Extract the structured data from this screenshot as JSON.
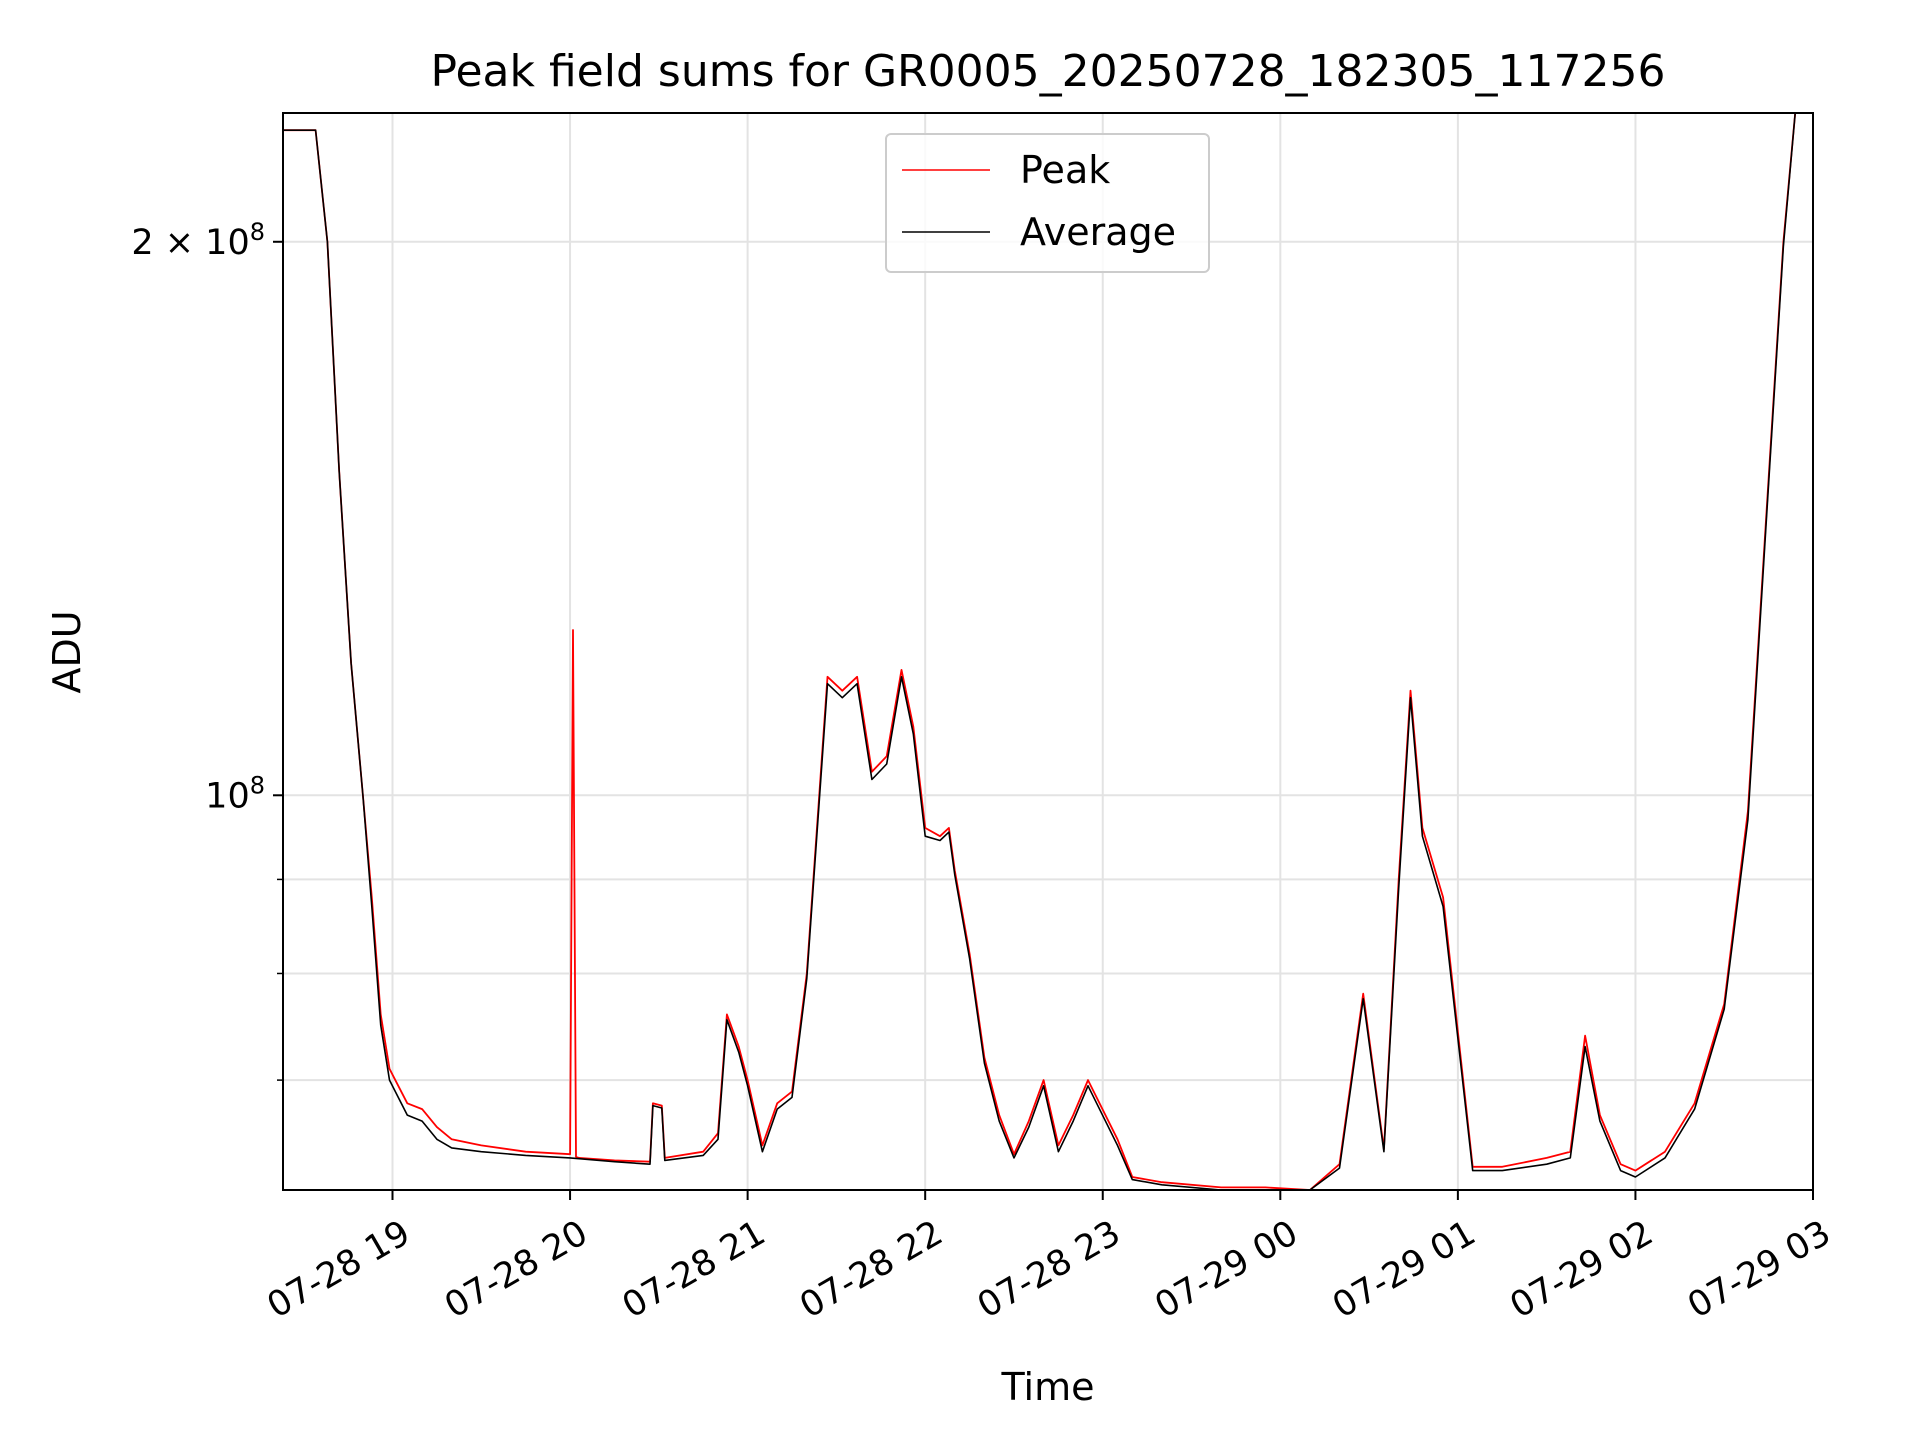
{
  "chart_data": {
    "type": "line",
    "title": "Peak field sums for GR0005_20250728_182305_117256",
    "xlabel": "Time",
    "ylabel": "ADU",
    "yscale": "log",
    "grid": true,
    "legend_position": "top-center",
    "xlim": [
      "07-28 18:23",
      "07-29 03:00"
    ],
    "ylim": [
      61000000,
      235000000
    ],
    "x_ticks": [
      "07-28 19:00",
      "07-28 20:00",
      "07-28 21:00",
      "07-28 22:00",
      "07-28 23:00",
      "07-29 00:00",
      "07-29 01:00",
      "07-29 02:00",
      "07-29 03:00"
    ],
    "x_tick_labels": [
      "07-28 19",
      "07-28 20",
      "07-28 21",
      "07-28 22",
      "07-28 23",
      "07-29 00",
      "07-29 01",
      "07-29 02",
      "07-29 03"
    ],
    "y_ticks": [
      100000000,
      200000000
    ],
    "y_tick_labels": [
      {
        "base": "10",
        "exp": "8"
      },
      {
        "base": "2 × 10",
        "exp": "8"
      }
    ],
    "y_minor_ticks": [
      70000000,
      80000000,
      90000000,
      300000000
    ],
    "colors": {
      "peak": "#ff0000",
      "average": "#000000"
    },
    "series": [
      {
        "name": "Peak",
        "color": "#ff0000",
        "x": [
          "07-28 18:23",
          "07-28 18:34",
          "07-28 18:38",
          "07-28 18:42",
          "07-28 18:46",
          "07-28 18:50",
          "07-28 18:53",
          "07-28 18:56",
          "07-28 18:59",
          "07-28 19:05",
          "07-28 19:10",
          "07-28 19:15",
          "07-28 19:20",
          "07-28 19:30",
          "07-28 19:45",
          "07-28 20:00",
          "07-28 20:01",
          "07-28 20:02",
          "07-28 20:03",
          "07-28 20:15",
          "07-28 20:27",
          "07-28 20:28",
          "07-28 20:31",
          "07-28 20:32",
          "07-28 20:45",
          "07-28 20:50",
          "07-28 20:53",
          "07-28 20:57",
          "07-28 21:00",
          "07-28 21:05",
          "07-28 21:10",
          "07-28 21:15",
          "07-28 21:20",
          "07-28 21:27",
          "07-28 21:32",
          "07-28 21:37",
          "07-28 21:42",
          "07-28 21:47",
          "07-28 21:52",
          "07-28 21:56",
          "07-28 22:00",
          "07-28 22:05",
          "07-28 22:08",
          "07-28 22:10",
          "07-28 22:15",
          "07-28 22:20",
          "07-28 22:25",
          "07-28 22:30",
          "07-28 22:35",
          "07-28 22:40",
          "07-28 22:45",
          "07-28 22:50",
          "07-28 22:55",
          "07-28 23:05",
          "07-28 23:10",
          "07-28 23:20",
          "07-28 23:40",
          "07-28 23:55",
          "07-29 00:10",
          "07-29 00:20",
          "07-29 00:28",
          "07-29 00:35",
          "07-29 00:40",
          "07-29 00:44",
          "07-29 00:48",
          "07-29 00:55",
          "07-29 01:05",
          "07-29 01:15",
          "07-29 01:30",
          "07-29 01:38",
          "07-29 01:43",
          "07-29 01:48",
          "07-29 01:55",
          "07-29 02:00",
          "07-29 02:10",
          "07-29 02:20",
          "07-29 02:30",
          "07-29 02:38",
          "07-29 02:44",
          "07-29 02:50",
          "07-29 02:54"
        ],
        "values": [
          230000000,
          230000000,
          200000000,
          150000000,
          118000000,
          100000000,
          88000000,
          76000000,
          71000000,
          68000000,
          67500000,
          66000000,
          65000000,
          64500000,
          64000000,
          63800000,
          123000000,
          63600000,
          63500000,
          63300000,
          63200000,
          68000000,
          67800000,
          63500000,
          64000000,
          65500000,
          76000000,
          73000000,
          70000000,
          64500000,
          68000000,
          69000000,
          80000000,
          116000000,
          114000000,
          116000000,
          103000000,
          105000000,
          117000000,
          109000000,
          96000000,
          95000000,
          96000000,
          91000000,
          82000000,
          72000000,
          67000000,
          63800000,
          66500000,
          70000000,
          64500000,
          67000000,
          70000000,
          65000000,
          62000000,
          61600000,
          61200000,
          61200000,
          61000000,
          63000000,
          78000000,
          64200000,
          90000000,
          114000000,
          96000000,
          88000000,
          62800000,
          62800000,
          63500000,
          64000000,
          74000000,
          67000000,
          63000000,
          62500000,
          64000000,
          68000000,
          77000000,
          98000000,
          140000000,
          200000000,
          235000000
        ]
      },
      {
        "name": "Average",
        "color": "#000000",
        "x": [
          "07-28 18:23",
          "07-28 18:34",
          "07-28 18:38",
          "07-28 18:42",
          "07-28 18:46",
          "07-28 18:50",
          "07-28 18:53",
          "07-28 18:56",
          "07-28 18:59",
          "07-28 19:05",
          "07-28 19:10",
          "07-28 19:15",
          "07-28 19:20",
          "07-28 19:30",
          "07-28 19:45",
          "07-28 20:00",
          "07-28 20:15",
          "07-28 20:27",
          "07-28 20:28",
          "07-28 20:31",
          "07-28 20:32",
          "07-28 20:45",
          "07-28 20:50",
          "07-28 20:53",
          "07-28 20:57",
          "07-28 21:00",
          "07-28 21:05",
          "07-28 21:10",
          "07-28 21:15",
          "07-28 21:20",
          "07-28 21:27",
          "07-28 21:32",
          "07-28 21:37",
          "07-28 21:42",
          "07-28 21:47",
          "07-28 21:52",
          "07-28 21:56",
          "07-28 22:00",
          "07-28 22:05",
          "07-28 22:08",
          "07-28 22:10",
          "07-28 22:15",
          "07-28 22:20",
          "07-28 22:25",
          "07-28 22:30",
          "07-28 22:35",
          "07-28 22:40",
          "07-28 22:45",
          "07-28 22:50",
          "07-28 22:55",
          "07-28 23:05",
          "07-28 23:10",
          "07-28 23:20",
          "07-28 23:40",
          "07-28 23:55",
          "07-29 00:10",
          "07-29 00:20",
          "07-29 00:28",
          "07-29 00:35",
          "07-29 00:40",
          "07-29 00:44",
          "07-29 00:48",
          "07-29 00:55",
          "07-29 01:05",
          "07-29 01:15",
          "07-29 01:30",
          "07-29 01:38",
          "07-29 01:43",
          "07-29 01:48",
          "07-29 01:55",
          "07-29 02:00",
          "07-29 02:10",
          "07-29 02:20",
          "07-29 02:30",
          "07-29 02:38",
          "07-29 02:44",
          "07-29 02:50",
          "07-29 02:54"
        ],
        "values": [
          230000000,
          230000000,
          200000000,
          150000000,
          118000000,
          100000000,
          87000000,
          75000000,
          70000000,
          67000000,
          66500000,
          65000000,
          64300000,
          64000000,
          63700000,
          63500000,
          63200000,
          63000000,
          67800000,
          67600000,
          63300000,
          63700000,
          65000000,
          75500000,
          72500000,
          69500000,
          64000000,
          67500000,
          68500000,
          79500000,
          115000000,
          113000000,
          115000000,
          102000000,
          104000000,
          116000000,
          108000000,
          95000000,
          94500000,
          95500000,
          90500000,
          81500000,
          71500000,
          66500000,
          63500000,
          66000000,
          69500000,
          64000000,
          66500000,
          69500000,
          64500000,
          61800000,
          61400000,
          61000000,
          61000000,
          60800000,
          62700000,
          77500000,
          64000000,
          89000000,
          113000000,
          95000000,
          87000000,
          62500000,
          62500000,
          63000000,
          63500000,
          73000000,
          66500000,
          62500000,
          62000000,
          63500000,
          67500000,
          76500000,
          97000000,
          139000000,
          199000000,
          235000000
        ]
      }
    ]
  }
}
